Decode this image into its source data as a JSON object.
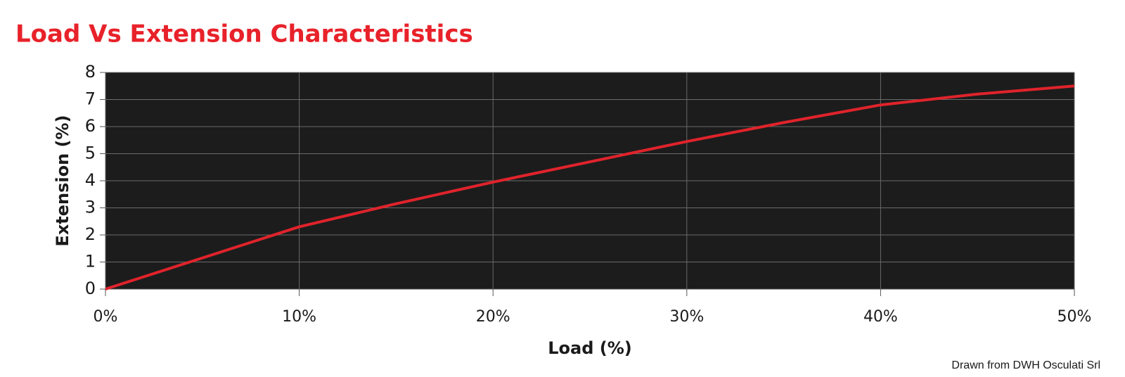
{
  "chart_data": {
    "type": "line",
    "title": "Load Vs Extension Characteristics",
    "x_label": "Load (%)",
    "y_label": "Extension (%)",
    "source": "Drawn from DWH Osculati Srl",
    "x": [
      0,
      5,
      10,
      15,
      20,
      25,
      30,
      35,
      40,
      45,
      50
    ],
    "series": [
      {
        "name": "Extension",
        "color": "#e0232b",
        "values": [
          0,
          1.15,
          2.3,
          3.15,
          3.95,
          4.7,
          5.45,
          6.15,
          6.8,
          7.2,
          7.5
        ]
      }
    ],
    "xlim": [
      0,
      50
    ],
    "xticks": [
      {
        "value": 0,
        "label": "0%"
      },
      {
        "value": 10,
        "label": "10%"
      },
      {
        "value": 20,
        "label": "20%"
      },
      {
        "value": 30,
        "label": "30%"
      },
      {
        "value": 40,
        "label": "40%"
      },
      {
        "value": 50,
        "label": "50%"
      }
    ],
    "ylim": [
      0,
      8
    ],
    "yticks": [
      0,
      1,
      2,
      3,
      4,
      5,
      6,
      7,
      8
    ],
    "grid": true,
    "title_color": "#e8222a",
    "plot_background": "#1c1c1c"
  }
}
